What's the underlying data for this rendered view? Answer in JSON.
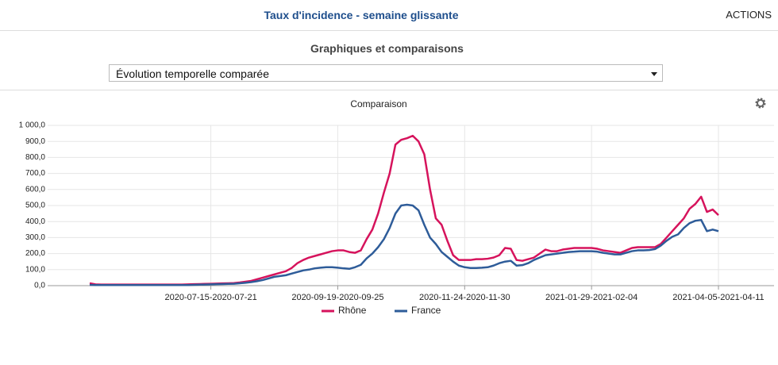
{
  "header": {
    "title": "Taux d'incidence - semaine glissante",
    "actions": "ACTIONS"
  },
  "section_title": "Graphiques et comparaisons",
  "selector": {
    "value": "Évolution temporelle comparée"
  },
  "chart_data": {
    "type": "line",
    "title": "Comparaison",
    "categories": [
      null,
      null,
      null,
      null,
      null,
      null,
      null,
      null,
      null,
      null,
      null,
      null,
      null,
      null,
      null,
      null,
      null,
      null,
      null,
      null,
      null,
      "2020-07-15-2020-07-21",
      null,
      null,
      null,
      null,
      null,
      null,
      null,
      null,
      null,
      null,
      null,
      null,
      null,
      null,
      null,
      null,
      null,
      null,
      null,
      null,
      null,
      "2020-09-19-2020-09-25",
      null,
      null,
      null,
      null,
      null,
      null,
      null,
      null,
      null,
      null,
      null,
      null,
      null,
      null,
      null,
      null,
      null,
      null,
      null,
      null,
      null,
      "2020-11-24-2020-11-30",
      null,
      null,
      null,
      null,
      null,
      null,
      null,
      null,
      null,
      null,
      null,
      null,
      null,
      null,
      null,
      null,
      null,
      null,
      null,
      null,
      null,
      "2021-01-29-2021-02-04",
      null,
      null,
      null,
      null,
      null,
      null,
      null,
      null,
      null,
      null,
      null,
      null,
      null,
      null,
      null,
      null,
      null,
      null,
      null,
      null,
      null,
      "2021-04-05-2021-04-11"
    ],
    "series": [
      {
        "name": "Rhône",
        "color": "#d6135c",
        "values": [
          15,
          8,
          7,
          7,
          7,
          7,
          7,
          7,
          7,
          7,
          7,
          7,
          7,
          7,
          7,
          7,
          7,
          8,
          9,
          10,
          11,
          12,
          13,
          14,
          15,
          16,
          20,
          25,
          30,
          40,
          50,
          60,
          70,
          80,
          90,
          110,
          140,
          160,
          175,
          185,
          195,
          205,
          215,
          220,
          220,
          210,
          205,
          220,
          290,
          350,
          450,
          580,
          700,
          880,
          910,
          920,
          935,
          900,
          820,
          600,
          420,
          380,
          280,
          190,
          160,
          160,
          160,
          165,
          165,
          168,
          175,
          190,
          235,
          230,
          160,
          155,
          165,
          175,
          200,
          225,
          215,
          215,
          225,
          230,
          235,
          235,
          235,
          235,
          230,
          220,
          215,
          210,
          205,
          220,
          235,
          240,
          240,
          240,
          240,
          260,
          300,
          340,
          380,
          420,
          480,
          510,
          555,
          460,
          475,
          440
        ]
      },
      {
        "name": "France",
        "color": "#2e5c99",
        "values": [
          5,
          4,
          4,
          4,
          4,
          4,
          4,
          4,
          4,
          4,
          4,
          4,
          4,
          4,
          4,
          4,
          4,
          4,
          5,
          6,
          7,
          8,
          9,
          10,
          11,
          12,
          15,
          18,
          22,
          28,
          35,
          45,
          55,
          60,
          65,
          75,
          85,
          95,
          100,
          108,
          112,
          115,
          115,
          112,
          108,
          105,
          115,
          130,
          170,
          200,
          240,
          290,
          360,
          450,
          500,
          505,
          500,
          470,
          380,
          300,
          260,
          210,
          180,
          150,
          125,
          115,
          110,
          110,
          112,
          115,
          125,
          140,
          150,
          155,
          125,
          128,
          140,
          160,
          175,
          190,
          195,
          200,
          205,
          210,
          212,
          215,
          215,
          215,
          212,
          205,
          200,
          195,
          195,
          205,
          215,
          220,
          220,
          222,
          228,
          250,
          280,
          305,
          320,
          360,
          390,
          405,
          410,
          340,
          350,
          340
        ]
      }
    ],
    "ylim": [
      0,
      1000
    ],
    "yticks": [
      {
        "value": 0,
        "label": "0,0"
      },
      {
        "value": 100,
        "label": "100,0"
      },
      {
        "value": 200,
        "label": "200,0"
      },
      {
        "value": 300,
        "label": "300,0"
      },
      {
        "value": 400,
        "label": "400,0"
      },
      {
        "value": 500,
        "label": "500,0"
      },
      {
        "value": 600,
        "label": "600,0"
      },
      {
        "value": 700,
        "label": "700,0"
      },
      {
        "value": 800,
        "label": "800,0"
      },
      {
        "value": 900,
        "label": "900,0"
      },
      {
        "value": 1000,
        "label": "1 000,0"
      }
    ],
    "grid": true,
    "legend": "bottom"
  }
}
